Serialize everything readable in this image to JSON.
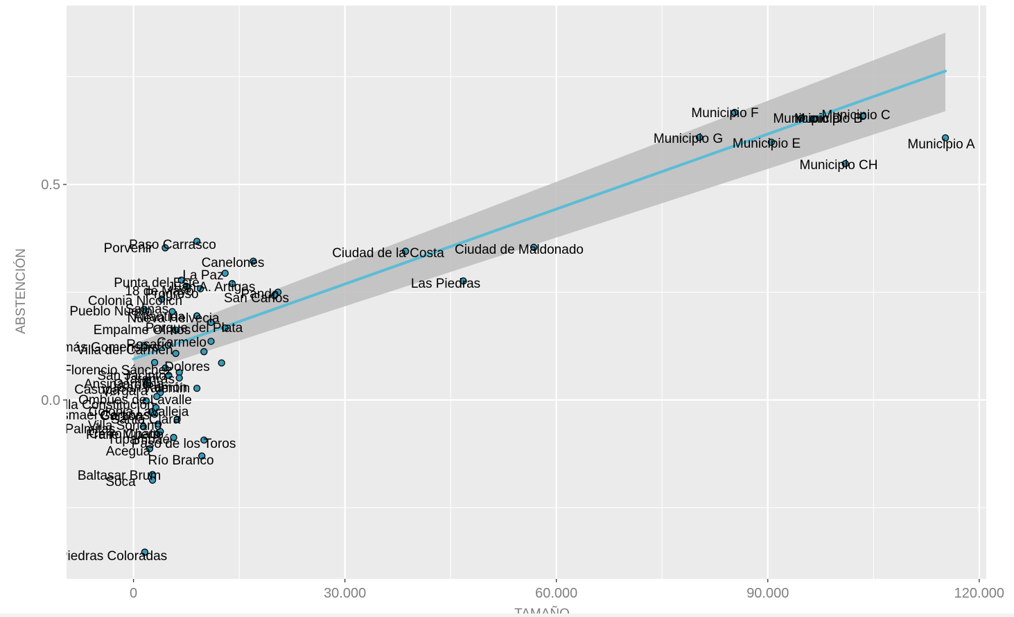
{
  "chart_data": {
    "type": "scatter",
    "title": "",
    "xlabel": "TAMAÑO",
    "ylabel": "ABSTENCIÓN",
    "xlim": [
      -9500,
      121000
    ],
    "ylim": [
      -0.415,
      0.915
    ],
    "x_ticks": [
      {
        "value": 0,
        "label": "0"
      },
      {
        "value": 30000,
        "label": "30.000"
      },
      {
        "value": 60000,
        "label": "60.000"
      },
      {
        "value": 90000,
        "label": "90.000"
      },
      {
        "value": 120000,
        "label": "120.000"
      }
    ],
    "y_ticks": [
      {
        "value": 0.0,
        "label": "0.0"
      },
      {
        "value": 0.5,
        "label": "0.5"
      }
    ],
    "grid": true,
    "colors": {
      "panel": "#ebebeb",
      "grid": "#ffffff",
      "points": "#3a9ab8",
      "point_outline": "#000000",
      "fit_line": "#5bbcd6",
      "confidence_band": "#bdbdbd"
    },
    "fit_line": {
      "x": [
        0,
        115200
      ],
      "y": [
        0.095,
        0.763
      ]
    },
    "confidence_band": {
      "x": [
        0,
        115200
      ],
      "lower": [
        0.058,
        0.67
      ],
      "upper": [
        0.13,
        0.852
      ]
    },
    "points": [
      {
        "label": "Municipio A",
        "x": 115200,
        "y": 0.608
      },
      {
        "label": "Municipio B",
        "x": 94800,
        "y": 0.654
      },
      {
        "label": "Municipio C",
        "x": 103500,
        "y": 0.658
      },
      {
        "label": "Municipio CH",
        "x": 101000,
        "y": 0.548
      },
      {
        "label": "Municipio D",
        "x": 96500,
        "y": 0.652
      },
      {
        "label": "Municipio E",
        "x": 90500,
        "y": 0.598
      },
      {
        "label": "Municipio F",
        "x": 85300,
        "y": 0.667
      },
      {
        "label": "Municipio G",
        "x": 80300,
        "y": 0.609
      },
      {
        "label": "Ciudad de la Costa",
        "x": 38600,
        "y": 0.345
      },
      {
        "label": "Ciudad de Maldonado",
        "x": 56800,
        "y": 0.354
      },
      {
        "label": "Las Piedras",
        "x": 46800,
        "y": 0.276
      },
      {
        "label": "Paso Carrasco",
        "x": 9000,
        "y": 0.368
      },
      {
        "label": "Porvenir",
        "x": 4500,
        "y": 0.353
      },
      {
        "label": "Canelones",
        "x": 17000,
        "y": 0.322
      },
      {
        "label": "La Paz",
        "x": 13000,
        "y": 0.294
      },
      {
        "label": "Punta del Este",
        "x": 6800,
        "y": 0.278
      },
      {
        "label": "18 de Mayo",
        "x": 7500,
        "y": 0.264
      },
      {
        "label": "Progreso",
        "x": 9500,
        "y": 0.258
      },
      {
        "label": "Colonia Nicolich",
        "x": 4000,
        "y": 0.234
      },
      {
        "label": "Pando",
        "x": 20500,
        "y": 0.25
      },
      {
        "label": "San Carlos",
        "x": 20000,
        "y": 0.242
      },
      {
        "label": "Juan A. Artigas",
        "x": 14000,
        "y": 0.27
      },
      {
        "label": "Pueblo Nuevo",
        "x": 1500,
        "y": 0.21
      },
      {
        "label": "Salinas",
        "x": 5500,
        "y": 0.205
      },
      {
        "label": "Atlántida",
        "x": 9000,
        "y": 0.195
      },
      {
        "label": "Nueva Helvecia",
        "x": 11000,
        "y": 0.18
      },
      {
        "label": "Parque del Plata",
        "x": 13000,
        "y": 0.167
      },
      {
        "label": "Empalme Olmos",
        "x": 6000,
        "y": 0.162
      },
      {
        "label": "Carmelo",
        "x": 11000,
        "y": 0.136
      },
      {
        "label": "Río Branco",
        "x": 9700,
        "y": -0.13
      },
      {
        "label": "Fraile Muerto",
        "x": 3500,
        "y": -0.077
      },
      {
        "label": "Paso de los Toros",
        "x": 10000,
        "y": -0.093
      },
      {
        "label": "Aceguá",
        "x": 2300,
        "y": -0.113
      },
      {
        "label": "Baltasar Brum",
        "x": 2700,
        "y": -0.173
      },
      {
        "label": "Soca",
        "x": 2700,
        "y": -0.186
      },
      {
        "label": "Piedras Coloradas",
        "x": 1600,
        "y": -0.353
      },
      {
        "label": "Villa del Carmen",
        "x": 6000,
        "y": 0.108
      },
      {
        "label": "Rosario",
        "x": 10000,
        "y": 0.112
      },
      {
        "label": "Tomás Gomensoro",
        "x": 1500,
        "y": 0.126
      },
      {
        "label": "Dolores",
        "x": 12500,
        "y": 0.086
      },
      {
        "label": "Florencio Sánchez",
        "x": 3000,
        "y": 0.087
      },
      {
        "label": "San Jacinto",
        "x": 4500,
        "y": 0.074
      },
      {
        "label": "Tarariras",
        "x": 6500,
        "y": 0.064
      },
      {
        "label": "Cardona",
        "x": 5000,
        "y": 0.057
      },
      {
        "label": "San Ramón",
        "x": 6500,
        "y": 0.051
      },
      {
        "label": "Ansina",
        "x": 2000,
        "y": 0.046
      },
      {
        "label": "Casupá",
        "x": 2000,
        "y": 0.04
      },
      {
        "label": "Valentín",
        "x": 9000,
        "y": 0.027
      },
      {
        "label": "Vergara",
        "x": 3800,
        "y": 0.017
      },
      {
        "label": "Ombúes de Lavalle",
        "x": 3300,
        "y": 0.008
      },
      {
        "label": "Villa Constitución",
        "x": 1800,
        "y": -0.002
      },
      {
        "label": "Colonia Lavalleja",
        "x": 3200,
        "y": -0.018
      },
      {
        "label": "Ismael Cortinas",
        "x": 2600,
        "y": -0.027
      },
      {
        "label": "Santa Clara",
        "x": 6200,
        "y": -0.045
      },
      {
        "label": "Garzón",
        "x": 3000,
        "y": -0.033
      },
      {
        "label": "Villa Soriano",
        "x": 3500,
        "y": -0.056
      },
      {
        "label": "Palmitas",
        "x": 1400,
        "y": -0.062
      },
      {
        "label": "Cerro Chato",
        "x": 3800,
        "y": -0.073
      },
      {
        "label": "Tupambaé",
        "x": 5700,
        "y": -0.087
      }
    ],
    "label_text": [
      {
        "text": "Municipio A"
      },
      {
        "text": "Municipio B"
      },
      {
        "text": "Municipio C"
      },
      {
        "text": "Municipio CH"
      },
      {
        "text": "Municipio D"
      },
      {
        "text": "Municipio E"
      },
      {
        "text": "Municipio F"
      },
      {
        "text": "Municipio G"
      },
      {
        "text": "Ciudad de la Costa"
      },
      {
        "text": "Ciudad de Maldonado"
      },
      {
        "text": "Las Piedras"
      },
      {
        "text": "Paso Carrasco"
      },
      {
        "text": "Porvenir"
      },
      {
        "text": "Canelones"
      },
      {
        "text": "La Paz"
      },
      {
        "text": "Punta del Este"
      },
      {
        "text": "18 de Mayo"
      },
      {
        "text": "Progreso"
      },
      {
        "text": "Colonia Nicolich"
      },
      {
        "text": "Pando"
      },
      {
        "text": "San Carlos"
      },
      {
        "text": "Juan A. Artigas"
      },
      {
        "text": "Pueblo Nuevo"
      },
      {
        "text": "Salinas"
      },
      {
        "text": "Atlántida"
      },
      {
        "text": "Nueva Helvecia"
      },
      {
        "text": "Parque del Plata"
      },
      {
        "text": "Empalme Olmos"
      },
      {
        "text": "Carmelo"
      },
      {
        "text": "Rio Branco"
      },
      {
        "text": "Fraile Muerto"
      },
      {
        "text": "Paso de los Toros"
      },
      {
        "text": "Aceguá"
      },
      {
        "text": "Baltasar Brum"
      },
      {
        "text": "Soca"
      },
      {
        "text": "Piedras Coloradas"
      },
      {
        "text": "Villa del Carmen"
      },
      {
        "text": "Rosario"
      },
      {
        "text": "Tomás Gomensoro"
      },
      {
        "text": "Dolores"
      },
      {
        "text": "Florencio Sánchez"
      },
      {
        "text": "San Jacinto"
      },
      {
        "text": "Tarariras"
      },
      {
        "text": "Cardona"
      },
      {
        "text": "San Ramón"
      },
      {
        "text": "Ansina"
      },
      {
        "text": "Casupá"
      },
      {
        "text": "Valentín"
      },
      {
        "text": "Vergara"
      },
      {
        "text": "Ombúes de Lavalle"
      },
      {
        "text": "Villa Constitución"
      },
      {
        "text": "Colonia Lavalleja"
      },
      {
        "text": "Ismael Cortinas"
      },
      {
        "text": "Santa Clara"
      },
      {
        "text": "Garzón"
      },
      {
        "text": "Villa Soriano"
      },
      {
        "text": "Palmitas"
      },
      {
        "text": "Cerro Chato"
      },
      {
        "text": "Tupambaé"
      }
    ]
  }
}
